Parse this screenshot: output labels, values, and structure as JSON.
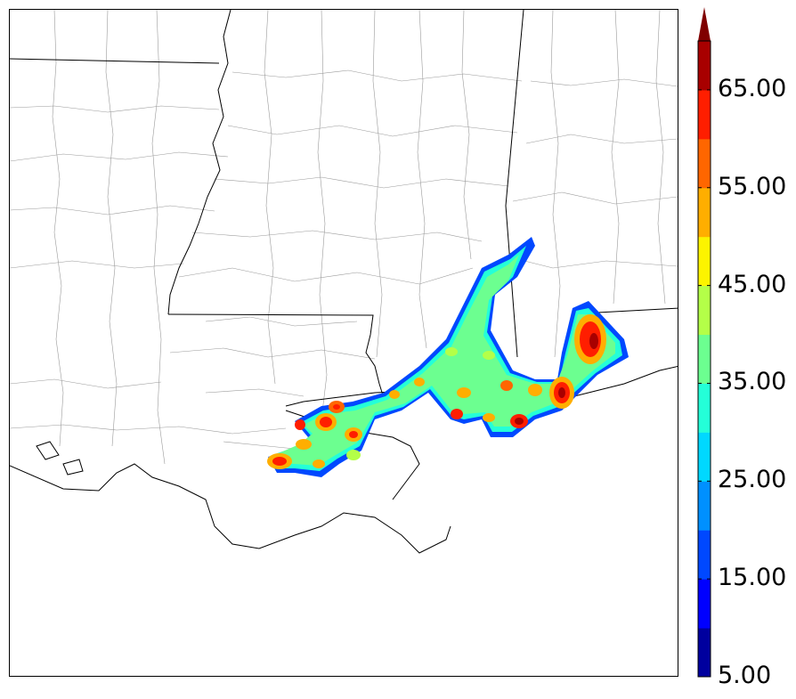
{
  "colorbar": {
    "colors": [
      "#00009e",
      "#0000ff",
      "#0048ff",
      "#0090ff",
      "#00d8ff",
      "#24ffd8",
      "#6cff90",
      "#b4ff48",
      "#fcf400",
      "#ffae00",
      "#ff6600",
      "#ff1e00",
      "#a80000"
    ],
    "extend_color": "#800000",
    "ticks": [
      {
        "value": 65,
        "label": "65.00"
      },
      {
        "value": 55,
        "label": "55.00"
      },
      {
        "value": 45,
        "label": "45.00"
      },
      {
        "value": 35,
        "label": "35.00"
      },
      {
        "value": 25,
        "label": "25.00"
      },
      {
        "value": 15,
        "label": "15.00"
      },
      {
        "value": 5,
        "label": "5.00"
      }
    ],
    "min": 5,
    "max": 70,
    "extend": "max"
  }
}
